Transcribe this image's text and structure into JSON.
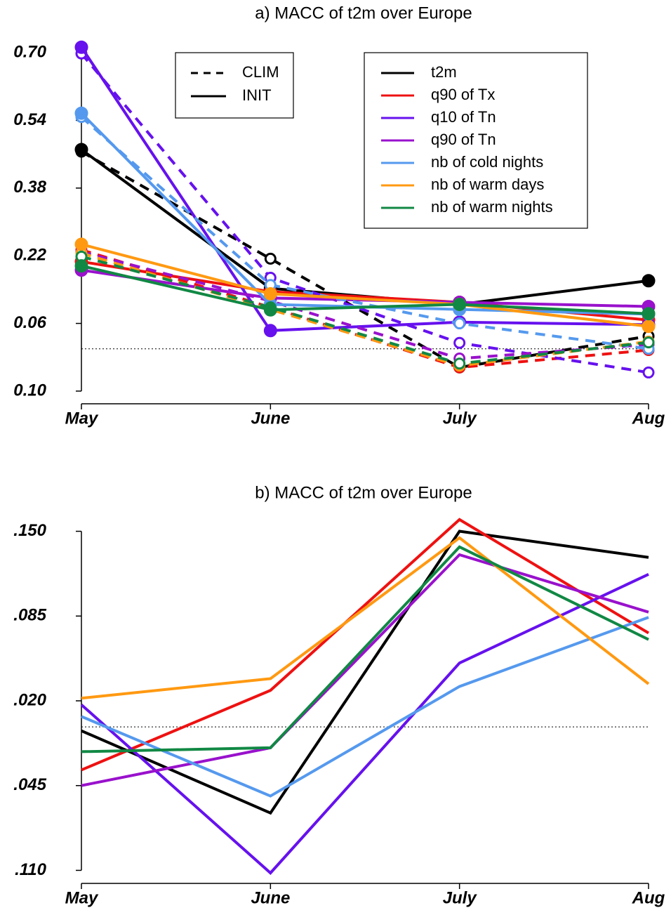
{
  "chart_data": [
    {
      "type": "line",
      "title": "a) MACC of t2m over Europe",
      "categories": [
        "May",
        "June",
        "July",
        "Aug"
      ],
      "ylim": [
        -0.13,
        0.73
      ],
      "yticks": [
        {
          "value": 0.7,
          "label": "0.70"
        },
        {
          "value": 0.54,
          "label": "0.54"
        },
        {
          "value": 0.38,
          "label": "0.38"
        },
        {
          "value": 0.22,
          "label": "0.22"
        },
        {
          "value": 0.06,
          "label": "0.06"
        },
        {
          "value": -0.1,
          "label": "0.10"
        }
      ],
      "reference_line": 0,
      "markers": true,
      "legend": true,
      "line_styles": [
        {
          "name": "CLIM",
          "dashed": true
        },
        {
          "name": "INIT",
          "dashed": false
        }
      ],
      "series": [
        {
          "name": "t2m",
          "color": "#000000",
          "values": [
            0.471,
            0.143,
            0.105,
            0.161
          ],
          "clim_values": [
            0.466,
            0.213,
            -0.044,
            0.03
          ]
        },
        {
          "name": "q90 of Tx",
          "color": "#ee1111",
          "values": [
            0.206,
            0.135,
            0.11,
            0.068
          ],
          "clim_values": [
            0.234,
            0.098,
            -0.044,
            -0.003
          ]
        },
        {
          "name": "q10 of Tn",
          "color": "#6611ee",
          "values": [
            0.713,
            0.043,
            0.063,
            0.057
          ],
          "clim_values": [
            0.698,
            0.168,
            0.014,
            -0.056
          ]
        },
        {
          "name": "q90 of Tn",
          "color": "#9911cc",
          "values": [
            0.186,
            0.12,
            0.11,
            0.1
          ],
          "clim_values": [
            0.229,
            0.113,
            -0.023,
            0.01
          ]
        },
        {
          "name": "nb of cold nights",
          "color": "#5599ee",
          "values": [
            0.557,
            0.105,
            0.093,
            0.082
          ],
          "clim_values": [
            0.548,
            0.151,
            0.06,
            0.0
          ]
        },
        {
          "name": "nb of warm days",
          "color": "#ff9911",
          "values": [
            0.247,
            0.13,
            0.105,
            0.053
          ],
          "clim_values": [
            0.226,
            0.093,
            -0.04,
            0.017
          ]
        },
        {
          "name": "nb of warm nights",
          "color": "#118844",
          "values": [
            0.196,
            0.092,
            0.105,
            0.083
          ],
          "clim_values": [
            0.218,
            0.098,
            -0.035,
            0.015
          ]
        }
      ]
    },
    {
      "type": "line",
      "title": "b) MACC of t2m over Europe",
      "categories": [
        "May",
        "June",
        "July",
        "Aug"
      ],
      "ylim": [
        -0.12,
        0.16
      ],
      "yticks": [
        {
          "value": 0.15,
          "label": ".150"
        },
        {
          "value": 0.085,
          "label": ".085"
        },
        {
          "value": 0.02,
          "label": ".020"
        },
        {
          "value": -0.045,
          "label": ".045"
        },
        {
          "value": -0.11,
          "label": ".110"
        }
      ],
      "reference_line": 0,
      "markers": false,
      "legend": false,
      "series": [
        {
          "color": "#000000",
          "values": [
            -0.003,
            -0.066,
            0.15,
            0.13
          ]
        },
        {
          "color": "#ee1111",
          "values": [
            -0.033,
            0.028,
            0.159,
            0.072
          ]
        },
        {
          "color": "#6611ee",
          "values": [
            0.017,
            -0.112,
            0.049,
            0.117
          ]
        },
        {
          "color": "#9911cc",
          "values": [
            -0.045,
            -0.016,
            0.132,
            0.088
          ]
        },
        {
          "color": "#5599ee",
          "values": [
            0.008,
            -0.053,
            0.031,
            0.084
          ]
        },
        {
          "color": "#ff9911",
          "values": [
            0.022,
            0.037,
            0.145,
            0.033
          ]
        },
        {
          "color": "#118844",
          "values": [
            -0.019,
            -0.016,
            0.138,
            0.067
          ]
        }
      ]
    }
  ]
}
